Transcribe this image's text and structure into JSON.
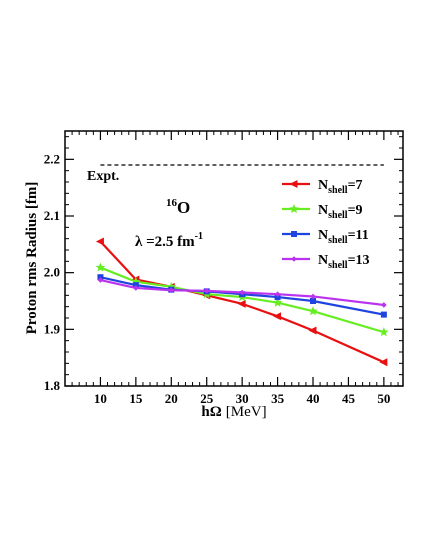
{
  "chart_data": {
    "type": "line",
    "x": [
      10,
      15,
      20,
      25,
      30,
      35,
      40,
      50
    ],
    "xlim": [
      5,
      52.7
    ],
    "ylim": [
      1.8,
      2.25
    ],
    "x_ticks": [
      "10",
      "15",
      "20",
      "25",
      "30",
      "35",
      "40",
      "45",
      "50"
    ],
    "y_ticks": [
      "1.8",
      "1.9",
      "2.0",
      "2.1",
      "2.2"
    ],
    "xlabel": {
      "base": "hΩ",
      "unit": "[MeV]"
    },
    "ylabel": "Proton rms Radius [fm]",
    "grid": false,
    "legend_position": "top-right",
    "series": [
      {
        "name": "shell=7",
        "prefix": "N",
        "sub": "shell",
        "suffix": "=7",
        "color": "#e81010",
        "marker": "triangle-left",
        "values": [
          2.055,
          1.988,
          1.975,
          1.96,
          1.945,
          1.923,
          1.898,
          1.842
        ]
      },
      {
        "name": "shell=9",
        "prefix": "N",
        "sub": "shell",
        "suffix": "=9",
        "color": "#66ee22",
        "marker": "star",
        "values": [
          2.009,
          1.984,
          1.975,
          1.962,
          1.957,
          1.947,
          1.932,
          1.895
        ]
      },
      {
        "name": "shell=11",
        "prefix": "N",
        "sub": "shell",
        "suffix": "=11",
        "color": "#1f44e0",
        "marker": "square",
        "values": [
          1.992,
          1.978,
          1.97,
          1.967,
          1.962,
          1.957,
          1.95,
          1.926
        ]
      },
      {
        "name": "shell=13",
        "prefix": "N",
        "sub": "shell",
        "suffix": "=13",
        "color": "#bb33ee",
        "marker": "diamond",
        "values": [
          1.987,
          1.973,
          1.969,
          1.968,
          1.965,
          1.962,
          1.958,
          1.943
        ]
      }
    ],
    "reference_line": {
      "label": "Expt.",
      "value": 2.19,
      "style": "dashed"
    },
    "annotations": {
      "nucleus": {
        "sup": "16",
        "text": "O"
      },
      "lambda": {
        "text": "λ =2.5 fm",
        "sup": "-1"
      }
    }
  }
}
